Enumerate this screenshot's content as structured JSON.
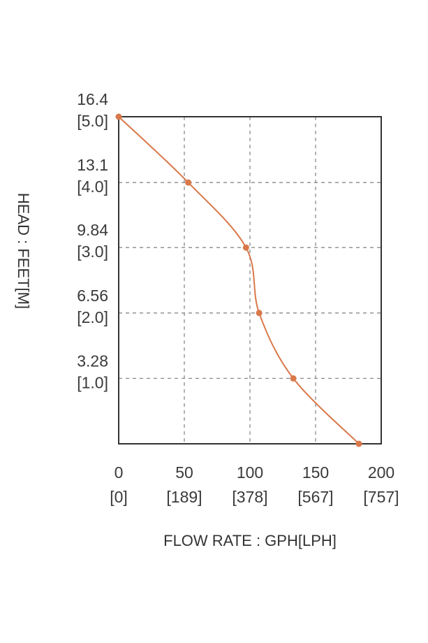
{
  "chart_data": {
    "type": "line",
    "title": "",
    "xlabel": "FLOW RATE : GPH[LPH]",
    "ylabel": "HEAD : FEET[M]",
    "xlim": [
      0,
      200
    ],
    "ylim": [
      0,
      16.4
    ],
    "x_ticks": [
      {
        "value": 0,
        "label": "0",
        "sub": "[0]"
      },
      {
        "value": 50,
        "label": "50",
        "sub": "[189]"
      },
      {
        "value": 100,
        "label": "100",
        "sub": "[378]"
      },
      {
        "value": 150,
        "label": "150",
        "sub": "[567]"
      },
      {
        "value": 200,
        "label": "200",
        "sub": "[757]"
      }
    ],
    "y_ticks": [
      {
        "value": 16.4,
        "label": "16.4",
        "sub": "[5.0]"
      },
      {
        "value": 13.1,
        "label": "13.1",
        "sub": "[4.0]"
      },
      {
        "value": 9.84,
        "label": "9.84",
        "sub": "[3.0]"
      },
      {
        "value": 6.56,
        "label": "6.56",
        "sub": "[2.0]"
      },
      {
        "value": 3.28,
        "label": "3.28",
        "sub": "[1.0]"
      }
    ],
    "series": [
      {
        "x": [
          0,
          53,
          97,
          107,
          133,
          183
        ],
        "y": [
          16.4,
          13.1,
          9.84,
          6.56,
          3.28,
          0
        ]
      }
    ],
    "grid": true,
    "colors": {
      "line": "#d9784a",
      "grid": "#8a8a8a",
      "frame": "#333333",
      "text": "#3a3a3a"
    }
  }
}
